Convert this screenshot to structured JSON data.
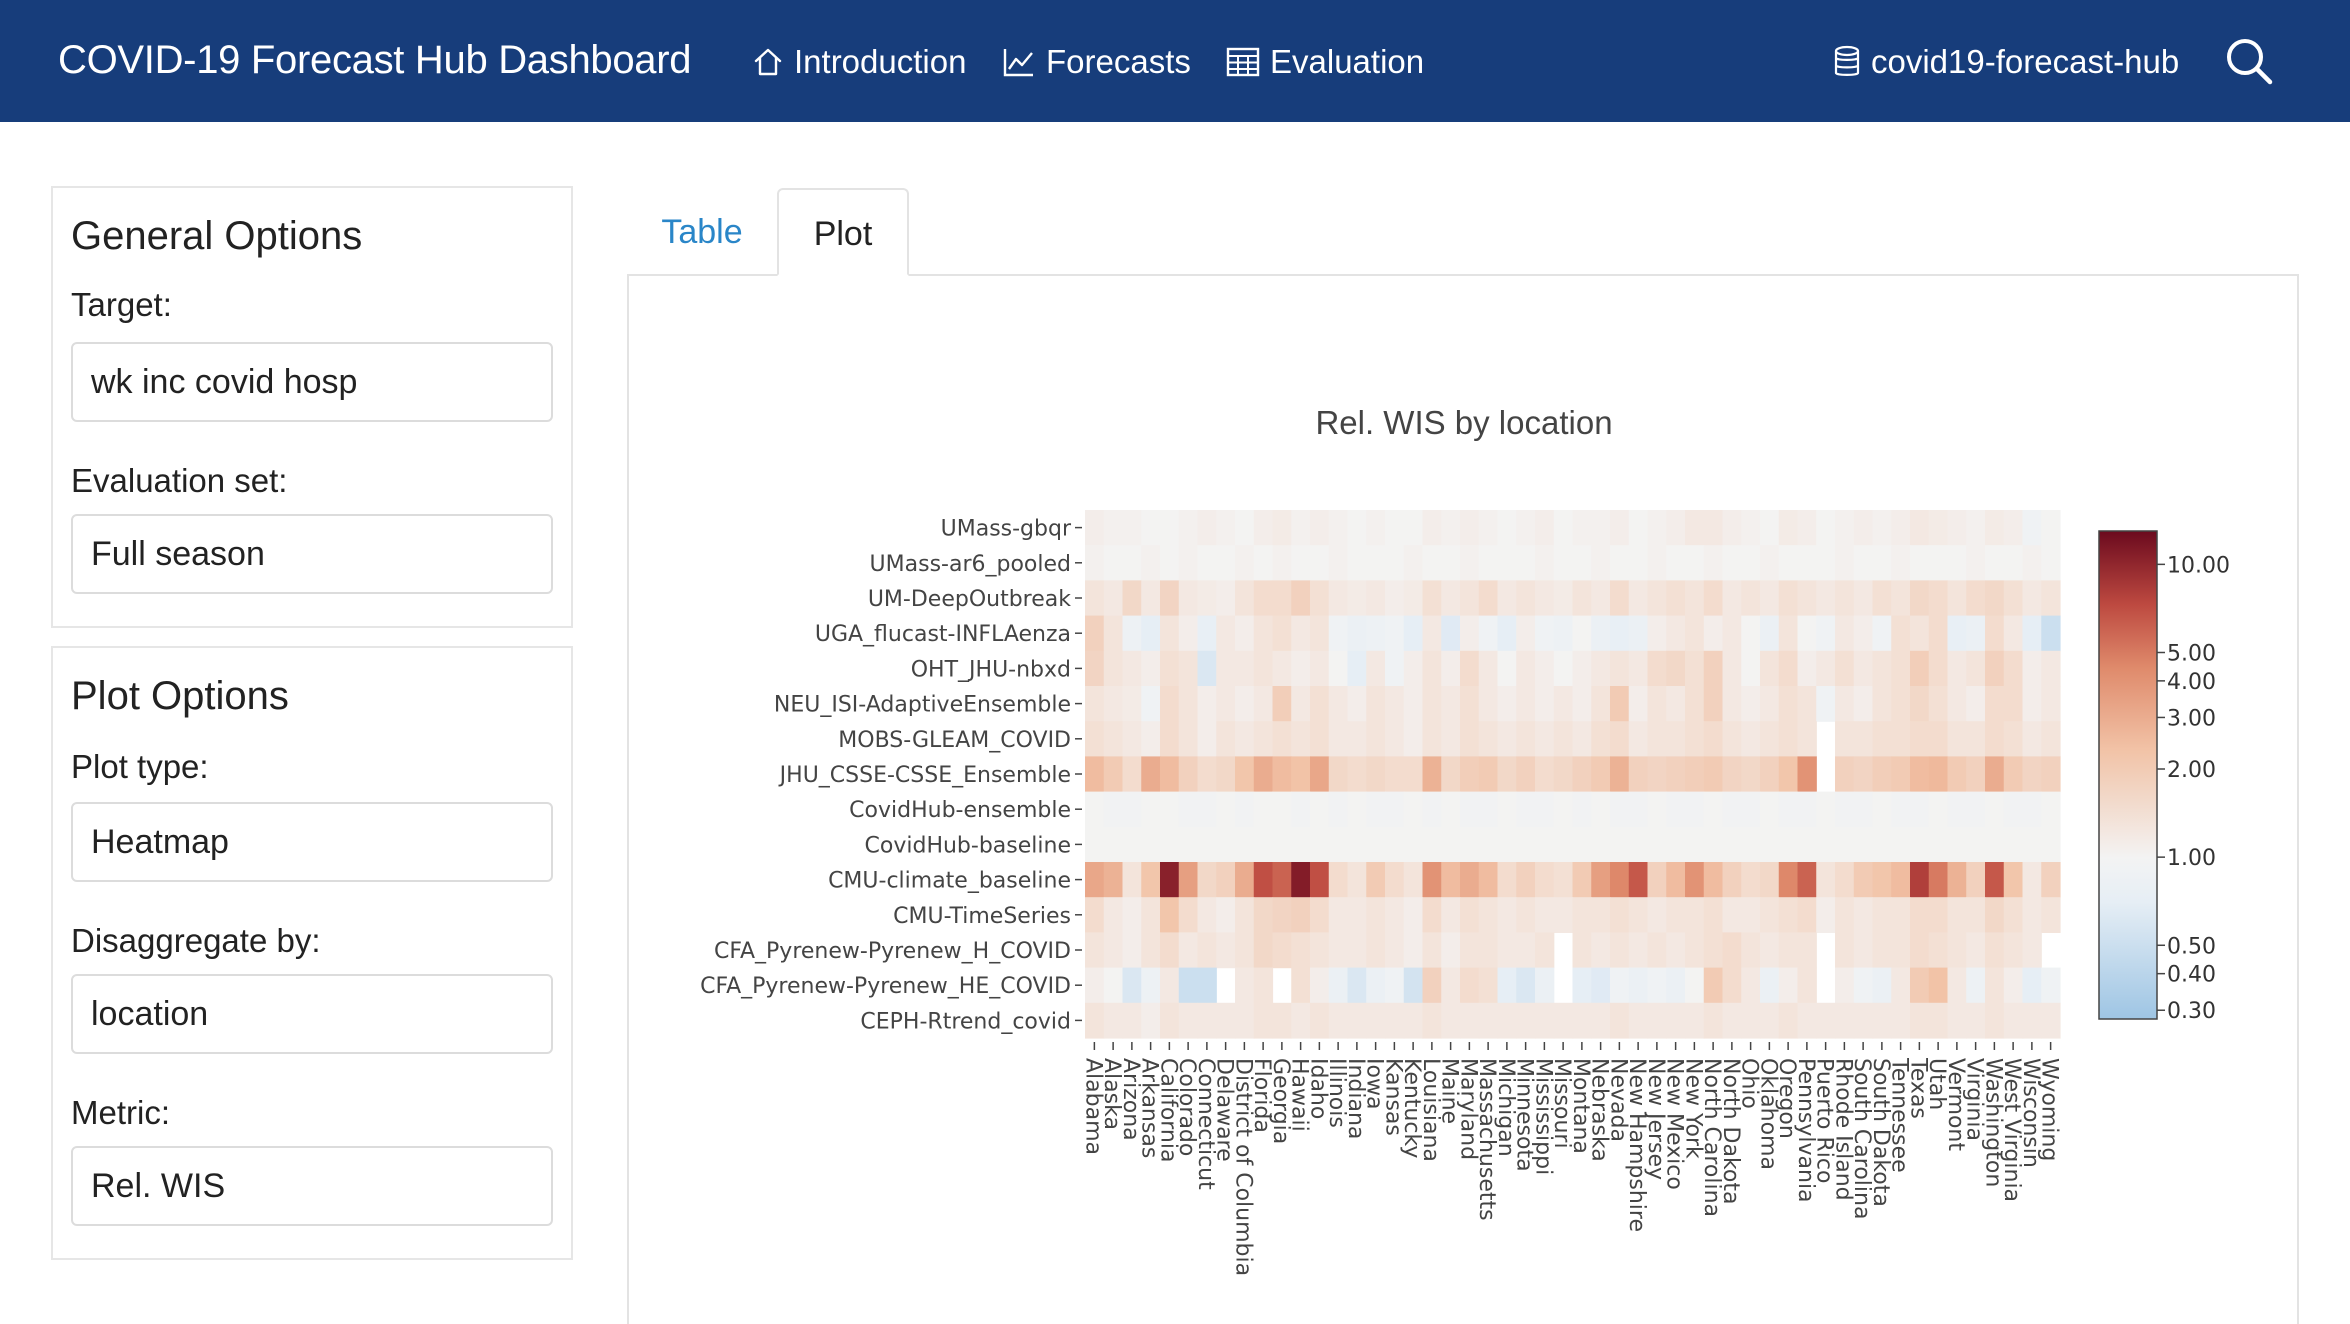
{
  "app": {
    "title": "COVID-19 Forecast Hub Dashboard",
    "nav": [
      {
        "label": "Introduction",
        "icon": "home-icon"
      },
      {
        "label": "Forecasts",
        "icon": "line-chart-icon"
      },
      {
        "label": "Evaluation",
        "icon": "table-icon"
      }
    ],
    "repo_label": "covid19-forecast-hub",
    "repo_icon": "database-icon",
    "search_icon": "search-icon"
  },
  "general_options": {
    "title": "General Options",
    "target_label": "Target:",
    "target_value": "wk inc covid hosp",
    "eval_label": "Evaluation set:",
    "eval_value": "Full season"
  },
  "plot_options": {
    "title": "Plot Options",
    "plot_type_label": "Plot type:",
    "plot_type_value": "Heatmap",
    "disagg_label": "Disaggregate by:",
    "disagg_value": "location",
    "metric_label": "Metric:",
    "metric_value": "Rel. WIS"
  },
  "tabs": [
    {
      "label": "Table",
      "active": false
    },
    {
      "label": "Plot",
      "active": true
    }
  ],
  "chart_data": {
    "type": "heatmap",
    "title": "Rel. WIS by location",
    "xlabel": "",
    "ylabel": "",
    "colorscale": "RdBu reversed (log), blue = low, red = high",
    "colorbar": {
      "ticks": [
        "10.00",
        "5.00",
        "4.00",
        "3.00",
        "2.00",
        "1.00",
        "0.50",
        "0.40",
        "0.30"
      ],
      "min": 0.28,
      "max": 13
    },
    "y": [
      "UMass-gbqr",
      "UMass-ar6_pooled",
      "UM-DeepOutbreak",
      "UGA_flucast-INFLAenza",
      "OHT_JHU-nbxd",
      "NEU_ISI-AdaptiveEnsemble",
      "MOBS-GLEAM_COVID",
      "JHU_CSSE-CSSE_Ensemble",
      "CovidHub-ensemble",
      "CovidHub-baseline",
      "CMU-climate_baseline",
      "CMU-TimeSeries",
      "CFA_Pyrenew-Pyrenew_H_COVID",
      "CFA_Pyrenew-Pyrenew_HE_COVID",
      "CEPH-Rtrend_covid"
    ],
    "x": [
      "Alabama",
      "Alaska",
      "Arizona",
      "Arkansas",
      "California",
      "Colorado",
      "Connecticut",
      "Delaware",
      "District of Columbia",
      "Florida",
      "Georgia",
      "Hawaii",
      "Idaho",
      "Illinois",
      "Indiana",
      "Iowa",
      "Kansas",
      "Kentucky",
      "Louisiana",
      "Maine",
      "Maryland",
      "Massachusetts",
      "Michigan",
      "Minnesota",
      "Mississippi",
      "Missouri",
      "Montana",
      "Nebraska",
      "Nevada",
      "New Hampshire",
      "New Jersey",
      "New Mexico",
      "New York",
      "North Carolina",
      "North Dakota",
      "Ohio",
      "Oklahoma",
      "Oregon",
      "Pennsylvania",
      "Puerto Rico",
      "Rhode Island",
      "South Carolina",
      "South Dakota",
      "Tennessee",
      "Texas",
      "Utah",
      "Vermont",
      "Virginia",
      "Washington",
      "West Virginia",
      "Wisconsin",
      "Wyoming"
    ],
    "z": [
      [
        1.1,
        1.05,
        1.05,
        1.0,
        1.0,
        1.05,
        1.1,
        1.05,
        1.0,
        1.1,
        1.15,
        1.05,
        1.1,
        1.05,
        1.0,
        1.05,
        1.0,
        1.0,
        1.1,
        1.05,
        1.1,
        1.05,
        1.0,
        1.05,
        1.1,
        1.0,
        1.05,
        1.05,
        1.1,
        1.0,
        1.05,
        1.1,
        1.2,
        1.2,
        1.1,
        1.05,
        1.0,
        1.15,
        1.1,
        1.0,
        1.05,
        1.1,
        1.05,
        1.1,
        1.2,
        1.15,
        1.1,
        1.05,
        1.15,
        1.1,
        0.9,
        1.0
      ],
      [
        1.05,
        1.0,
        1.0,
        1.05,
        1.0,
        1.05,
        1.0,
        1.0,
        1.05,
        1.0,
        1.05,
        1.0,
        1.0,
        1.05,
        1.0,
        1.0,
        1.0,
        1.05,
        1.0,
        1.0,
        1.05,
        1.0,
        1.0,
        1.0,
        1.05,
        1.0,
        1.0,
        1.05,
        1.0,
        1.0,
        1.05,
        1.0,
        1.0,
        1.05,
        1.0,
        1.0,
        1.05,
        1.0,
        1.0,
        1.0,
        1.05,
        1.0,
        1.0,
        1.05,
        1.0,
        1.0,
        1.0,
        1.05,
        1.0,
        1.0,
        1.05,
        1.0
      ],
      [
        1.3,
        1.2,
        1.6,
        1.2,
        1.7,
        1.2,
        1.15,
        1.1,
        1.3,
        1.5,
        1.5,
        1.8,
        1.4,
        1.2,
        1.15,
        1.2,
        1.1,
        1.15,
        1.4,
        1.2,
        1.3,
        1.5,
        1.2,
        1.3,
        1.2,
        1.15,
        1.3,
        1.2,
        1.5,
        1.2,
        1.3,
        1.4,
        1.3,
        1.5,
        1.2,
        1.3,
        1.2,
        1.4,
        1.3,
        1.2,
        1.3,
        1.2,
        1.4,
        1.3,
        1.6,
        1.5,
        1.3,
        1.5,
        1.6,
        1.4,
        1.2,
        1.3
      ],
      [
        1.8,
        1.3,
        0.85,
        0.7,
        1.3,
        1.1,
        0.75,
        1.2,
        1.1,
        1.3,
        1.4,
        1.2,
        1.3,
        0.9,
        0.8,
        0.85,
        0.9,
        0.7,
        1.2,
        0.65,
        1.1,
        0.9,
        0.7,
        1.1,
        0.9,
        0.85,
        1.0,
        0.8,
        0.75,
        0.8,
        1.1,
        1.2,
        1.3,
        1.1,
        1.2,
        1.0,
        0.8,
        1.3,
        1.0,
        0.9,
        1.2,
        1.1,
        0.9,
        1.4,
        1.3,
        1.5,
        0.75,
        0.8,
        1.5,
        1.2,
        0.7,
        0.5
      ],
      [
        1.7,
        1.3,
        1.2,
        1.1,
        1.4,
        1.3,
        0.6,
        1.2,
        1.2,
        1.3,
        1.2,
        1.1,
        1.2,
        1.0,
        0.7,
        1.2,
        0.9,
        1.1,
        1.3,
        1.1,
        1.5,
        1.2,
        1.0,
        1.2,
        1.1,
        1.0,
        1.1,
        1.2,
        1.3,
        1.2,
        1.5,
        1.6,
        1.4,
        1.8,
        1.2,
        1.0,
        1.3,
        1.5,
        1.1,
        1.2,
        1.4,
        1.2,
        1.3,
        1.4,
        1.9,
        1.5,
        1.2,
        1.3,
        1.8,
        1.5,
        1.1,
        1.2
      ],
      [
        1.3,
        1.2,
        1.15,
        0.9,
        1.5,
        1.3,
        1.1,
        1.2,
        1.1,
        1.2,
        1.9,
        1.2,
        1.4,
        1.2,
        1.1,
        1.3,
        1.2,
        1.1,
        1.3,
        1.2,
        1.4,
        1.2,
        1.1,
        1.2,
        1.1,
        1.2,
        1.1,
        1.3,
        2.0,
        1.1,
        1.3,
        1.2,
        1.4,
        1.8,
        1.2,
        1.1,
        1.2,
        1.4,
        1.3,
        0.9,
        1.2,
        1.1,
        1.3,
        1.4,
        1.6,
        1.4,
        1.2,
        1.1,
        1.5,
        1.5,
        1.1,
        1.2
      ],
      [
        1.4,
        1.3,
        1.2,
        1.1,
        1.5,
        1.3,
        1.1,
        1.3,
        1.2,
        1.3,
        1.4,
        1.3,
        1.4,
        1.2,
        1.2,
        1.3,
        1.2,
        1.1,
        1.3,
        1.2,
        1.4,
        1.3,
        1.2,
        1.3,
        1.2,
        1.3,
        1.2,
        1.4,
        1.5,
        1.2,
        1.3,
        1.3,
        1.4,
        1.5,
        1.3,
        1.2,
        1.3,
        1.4,
        1.3,
        null,
        1.3,
        1.3,
        1.4,
        1.4,
        1.5,
        1.5,
        1.3,
        1.3,
        1.5,
        1.4,
        1.2,
        1.3
      ],
      [
        2.5,
        2.0,
        1.5,
        3.0,
        2.5,
        1.8,
        1.5,
        1.6,
        2.2,
        3.0,
        2.5,
        2.3,
        3.2,
        1.6,
        1.5,
        1.6,
        1.5,
        1.5,
        2.8,
        1.6,
        1.9,
        2.0,
        1.6,
        1.8,
        1.5,
        1.6,
        1.8,
        2.0,
        2.8,
        1.8,
        1.7,
        1.8,
        1.9,
        2.0,
        1.7,
        1.6,
        1.8,
        2.2,
        4.0,
        null,
        1.8,
        1.7,
        1.9,
        2.0,
        2.5,
        2.6,
        2.0,
        1.8,
        3.0,
        2.0,
        1.7,
        1.8
      ],
      [
        1.0,
        0.95,
        0.95,
        1.0,
        1.0,
        0.95,
        0.95,
        1.0,
        0.95,
        1.0,
        1.0,
        0.95,
        1.0,
        0.95,
        1.0,
        0.95,
        0.95,
        1.0,
        0.95,
        1.0,
        0.95,
        0.95,
        1.0,
        0.95,
        0.95,
        1.0,
        0.95,
        1.0,
        0.95,
        0.95,
        1.0,
        0.95,
        0.95,
        1.0,
        0.95,
        0.95,
        1.0,
        0.95,
        0.95,
        1.0,
        0.95,
        0.95,
        1.0,
        0.95,
        0.95,
        1.0,
        0.95,
        0.95,
        1.0,
        0.95,
        0.95,
        1.0
      ],
      [
        1.0,
        1.0,
        1.0,
        1.0,
        1.0,
        1.0,
        1.0,
        1.0,
        1.0,
        1.0,
        1.0,
        1.0,
        1.0,
        1.0,
        1.0,
        1.0,
        1.0,
        1.0,
        1.0,
        1.0,
        1.0,
        1.0,
        1.0,
        1.0,
        1.0,
        1.0,
        1.0,
        1.0,
        1.0,
        1.0,
        1.0,
        1.0,
        1.0,
        1.0,
        1.0,
        1.0,
        1.0,
        1.0,
        1.0,
        1.0,
        1.0,
        1.0,
        1.0,
        1.0,
        1.0,
        1.0,
        1.0,
        1.0,
        1.0,
        1.0,
        1.0,
        1.0
      ],
      [
        3.2,
        2.8,
        1.3,
        2.2,
        10.5,
        3.5,
        1.6,
        1.8,
        3.0,
        7.0,
        6.0,
        11.0,
        7.0,
        1.5,
        1.3,
        2.0,
        1.5,
        1.3,
        4.0,
        2.5,
        3.0,
        2.5,
        1.5,
        1.8,
        1.5,
        1.4,
        2.0,
        3.5,
        4.5,
        6.5,
        1.8,
        2.5,
        4.0,
        2.5,
        1.8,
        1.5,
        1.6,
        4.5,
        6.0,
        1.3,
        1.5,
        2.0,
        2.2,
        2.5,
        8.0,
        5.0,
        2.8,
        1.8,
        6.5,
        2.2,
        1.2,
        1.8
      ],
      [
        1.5,
        1.2,
        1.1,
        1.3,
        2.2,
        1.5,
        1.2,
        1.1,
        1.3,
        1.6,
        1.7,
        1.8,
        1.5,
        1.2,
        1.2,
        1.3,
        1.2,
        1.1,
        1.5,
        1.2,
        1.4,
        1.3,
        1.2,
        1.3,
        1.2,
        1.2,
        1.3,
        1.3,
        1.4,
        1.3,
        1.2,
        1.3,
        1.3,
        1.4,
        1.2,
        1.2,
        1.3,
        1.4,
        1.5,
        1.1,
        1.3,
        1.2,
        1.3,
        1.3,
        1.5,
        1.5,
        1.3,
        1.3,
        1.6,
        1.4,
        1.2,
        1.3
      ],
      [
        1.3,
        1.2,
        1.1,
        1.3,
        1.5,
        1.2,
        1.3,
        1.2,
        1.3,
        1.6,
        1.5,
        1.4,
        1.3,
        1.2,
        1.2,
        1.3,
        1.2,
        1.1,
        1.3,
        1.1,
        1.3,
        1.3,
        1.2,
        1.2,
        1.3,
        null,
        1.3,
        1.2,
        1.3,
        1.2,
        1.3,
        1.2,
        1.3,
        1.4,
        1.5,
        1.3,
        1.2,
        1.3,
        1.3,
        null,
        1.3,
        1.2,
        1.3,
        1.3,
        1.5,
        1.4,
        1.3,
        1.2,
        1.4,
        1.3,
        1.2,
        null
      ],
      [
        1.1,
        1.0,
        0.6,
        0.85,
        1.2,
        0.5,
        0.5,
        null,
        1.2,
        1.3,
        null,
        1.4,
        1.1,
        0.8,
        0.6,
        0.8,
        0.9,
        0.55,
        1.8,
        1.2,
        1.5,
        1.4,
        0.7,
        0.6,
        0.8,
        null,
        0.7,
        0.65,
        0.9,
        0.8,
        0.9,
        0.8,
        1.0,
        2.0,
        1.5,
        1.2,
        0.8,
        1.1,
        1.3,
        null,
        1.1,
        0.9,
        0.8,
        1.2,
        2.0,
        2.3,
        1.2,
        0.85,
        1.3,
        1.1,
        0.7,
        0.9
      ],
      [
        1.3,
        1.2,
        1.2,
        1.1,
        1.3,
        1.2,
        1.2,
        1.2,
        1.2,
        1.3,
        1.3,
        1.2,
        1.3,
        1.2,
        1.2,
        1.2,
        1.2,
        1.2,
        1.3,
        1.2,
        1.2,
        1.2,
        1.2,
        1.2,
        1.2,
        1.2,
        1.2,
        1.2,
        1.3,
        1.2,
        1.2,
        1.2,
        1.2,
        1.3,
        1.2,
        1.2,
        1.2,
        1.3,
        1.2,
        1.2,
        1.2,
        1.2,
        1.2,
        1.2,
        1.3,
        1.3,
        1.2,
        1.2,
        1.3,
        1.2,
        1.2,
        1.2
      ]
    ]
  }
}
